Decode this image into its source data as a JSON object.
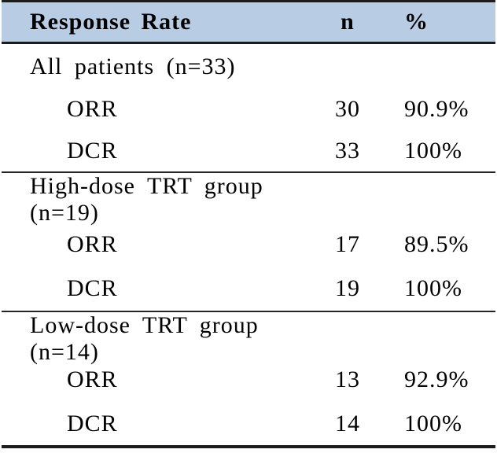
{
  "table": {
    "header": {
      "col1": "Response Rate",
      "col2": "n",
      "col3": "%"
    },
    "sections": [
      {
        "label": "All patients (n=33)",
        "rows": [
          {
            "label": "ORR",
            "n": "30",
            "pct": "90.9%"
          },
          {
            "label": "DCR",
            "n": "33",
            "pct": "100%"
          }
        ]
      },
      {
        "label": "High-dose TRT group (n=19)",
        "rows": [
          {
            "label": "ORR",
            "n": "17",
            "pct": "89.5%"
          },
          {
            "label": "DCR",
            "n": "19",
            "pct": "100%"
          }
        ]
      },
      {
        "label": "Low-dose TRT group (n=14)",
        "rows": [
          {
            "label": "ORR",
            "n": "13",
            "pct": "92.9%"
          },
          {
            "label": "DCR",
            "n": "14",
            "pct": "100%"
          }
        ]
      }
    ],
    "colors": {
      "header_bg": "#b8cce4",
      "rule": "#1c1c1c",
      "text": "#000000"
    }
  }
}
